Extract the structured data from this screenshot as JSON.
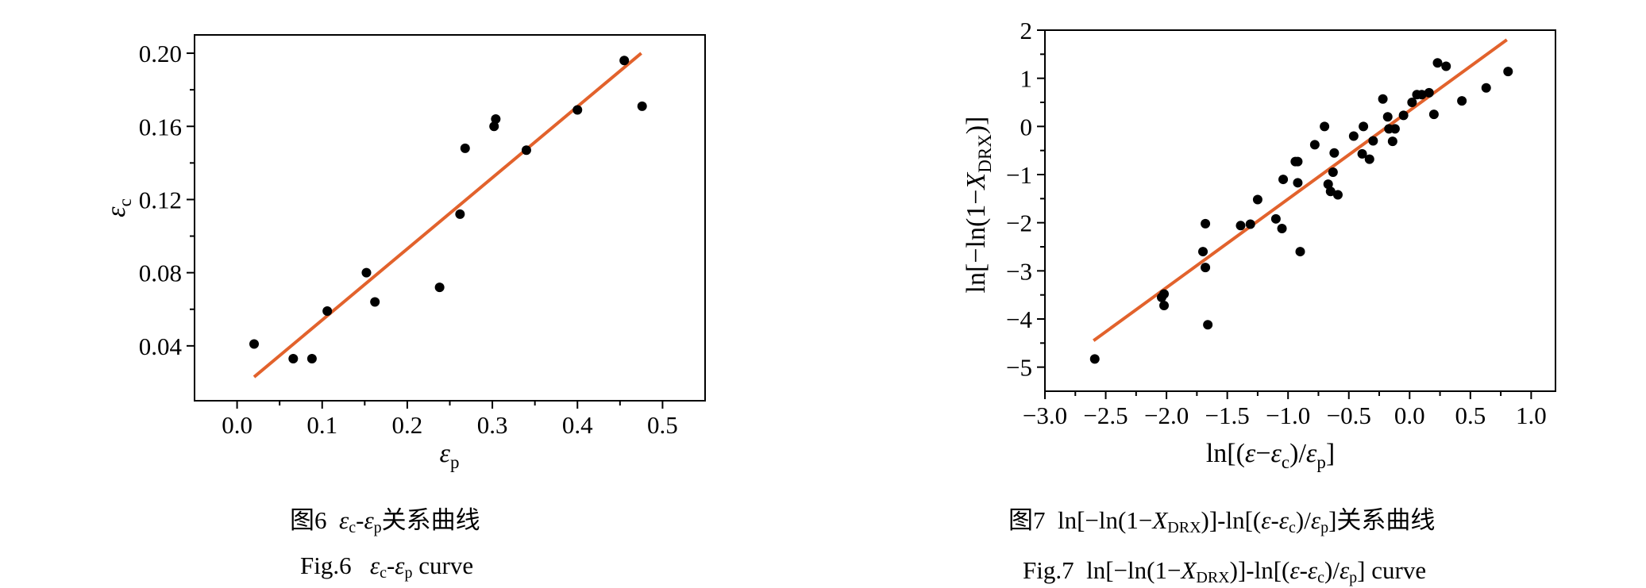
{
  "charts": [
    {
      "caption_cn": {
        "prefix": "图6",
        "a": "ε",
        "a_sub": "c",
        "dash": "-",
        "b": "ε",
        "b_sub": "p",
        "suffix": "关系曲线"
      },
      "caption_en": {
        "prefix": "Fig.6",
        "a": "ε",
        "a_sub": "c",
        "dash": "-",
        "b": "ε",
        "b_sub": "p",
        "suffix": "curve"
      },
      "xlabel": {
        "sym": "ε",
        "sub": "p"
      },
      "ylabel": {
        "sym": "ε",
        "sub": "c"
      }
    },
    {
      "caption_cn": {
        "prefix": "图7",
        "t1": "ln[−ln(1−",
        "x": "X",
        "x_sub": "DRX",
        "t2": ")]-ln[(",
        "e1": "ε",
        "t3": "-",
        "e2": "ε",
        "e2_sub": "c",
        "t4": ")/",
        "e3": "ε",
        "e3_sub": "p",
        "t5": "]关系曲线"
      },
      "caption_en": {
        "prefix": "Fig.7",
        "t1": "ln[−ln(1−",
        "x": "X",
        "x_sub": "DRX",
        "t2": ")]-ln[(",
        "e1": "ε",
        "t3": "-",
        "e2": "ε",
        "e2_sub": "c",
        "t4": ")/",
        "e3": "ε",
        "e3_sub": "p",
        "t5": "] curve"
      },
      "xlabel": {
        "t1": "ln[(",
        "e1": "ε",
        "t2": "−",
        "e2": "ε",
        "e2_sub": "c",
        "t3": ")/",
        "e3": "ε",
        "e3_sub": "p",
        "t4": "]"
      },
      "ylabel": {
        "t1": "ln[−ln(1−",
        "x": "X",
        "x_sub": "DRX",
        "t2": ")]"
      }
    }
  ],
  "chart_data": [
    {
      "type": "scatter",
      "xlim": [
        -0.05,
        0.55
      ],
      "ylim": [
        0.01,
        0.21
      ],
      "x_ticks": [
        0.0,
        0.1,
        0.2,
        0.3,
        0.4,
        0.5
      ],
      "x_tick_labels": [
        "0.0",
        "0.1",
        "0.2",
        "0.3",
        "0.4",
        "0.5"
      ],
      "y_ticks": [
        0.04,
        0.08,
        0.12,
        0.16,
        0.2
      ],
      "y_tick_labels": [
        "0.04",
        "0.08",
        "0.12",
        "0.16",
        "0.20"
      ],
      "grid": false,
      "points": [
        [
          0.02,
          0.041
        ],
        [
          0.066,
          0.033
        ],
        [
          0.088,
          0.033
        ],
        [
          0.106,
          0.059
        ],
        [
          0.152,
          0.08
        ],
        [
          0.162,
          0.064
        ],
        [
          0.238,
          0.072
        ],
        [
          0.262,
          0.112
        ],
        [
          0.268,
          0.148
        ],
        [
          0.302,
          0.16
        ],
        [
          0.304,
          0.164
        ],
        [
          0.34,
          0.147
        ],
        [
          0.4,
          0.169
        ],
        [
          0.455,
          0.196
        ],
        [
          0.476,
          0.171
        ]
      ],
      "fit_line": [
        [
          0.02,
          0.023
        ],
        [
          0.475,
          0.2
        ]
      ],
      "point_color": "#000000",
      "line_color": "#e2622c"
    },
    {
      "type": "scatter",
      "xlim": [
        -3.0,
        1.2
      ],
      "ylim": [
        -5.5,
        2.0
      ],
      "x_ticks": [
        -3.0,
        -2.5,
        -2.0,
        -1.5,
        -1.0,
        -0.5,
        0.0,
        0.5,
        1.0
      ],
      "x_tick_labels": [
        "−3.0",
        "−2.5",
        "−2.0",
        "−1.5",
        "−1.0",
        "−0.5",
        "0.0",
        "0.5",
        "1.0"
      ],
      "y_ticks": [
        -5,
        -4,
        -3,
        -2,
        -1,
        0,
        1,
        2
      ],
      "y_tick_labels": [
        "−5",
        "−4",
        "−3",
        "−2",
        "−1",
        "0",
        "1",
        "2"
      ],
      "grid": false,
      "points": [
        [
          -2.59,
          -4.83
        ],
        [
          -2.04,
          -3.55
        ],
        [
          -2.02,
          -3.48
        ],
        [
          -2.02,
          -3.72
        ],
        [
          -1.7,
          -2.6
        ],
        [
          -1.68,
          -2.93
        ],
        [
          -1.68,
          -2.02
        ],
        [
          -1.66,
          -4.12
        ],
        [
          -1.39,
          -2.06
        ],
        [
          -1.31,
          -2.03
        ],
        [
          -1.25,
          -1.52
        ],
        [
          -1.1,
          -1.92
        ],
        [
          -1.05,
          -2.12
        ],
        [
          -1.04,
          -1.1
        ],
        [
          -0.94,
          -0.73
        ],
        [
          -0.92,
          -0.73
        ],
        [
          -0.92,
          -1.17
        ],
        [
          -0.9,
          -2.6
        ],
        [
          -0.78,
          -0.38
        ],
        [
          -0.7,
          0.0
        ],
        [
          -0.67,
          -1.2
        ],
        [
          -0.65,
          -1.35
        ],
        [
          -0.63,
          -0.95
        ],
        [
          -0.62,
          -0.55
        ],
        [
          -0.59,
          -1.42
        ],
        [
          -0.46,
          -0.2
        ],
        [
          -0.39,
          -0.57
        ],
        [
          -0.38,
          0.0
        ],
        [
          -0.33,
          -0.68
        ],
        [
          -0.3,
          -0.3
        ],
        [
          -0.22,
          0.57
        ],
        [
          -0.18,
          0.2
        ],
        [
          -0.17,
          -0.05
        ],
        [
          -0.14,
          -0.31
        ],
        [
          -0.12,
          -0.05
        ],
        [
          -0.05,
          0.23
        ],
        [
          0.02,
          0.5
        ],
        [
          0.06,
          0.66
        ],
        [
          0.1,
          0.66
        ],
        [
          0.16,
          0.7
        ],
        [
          0.2,
          0.25
        ],
        [
          0.23,
          1.32
        ],
        [
          0.3,
          1.25
        ],
        [
          0.43,
          0.53
        ],
        [
          0.63,
          0.8
        ],
        [
          0.81,
          1.14
        ]
      ],
      "fit_line": [
        [
          -2.6,
          -4.45
        ],
        [
          0.8,
          1.8
        ]
      ],
      "point_color": "#000000",
      "line_color": "#e2622c"
    }
  ]
}
